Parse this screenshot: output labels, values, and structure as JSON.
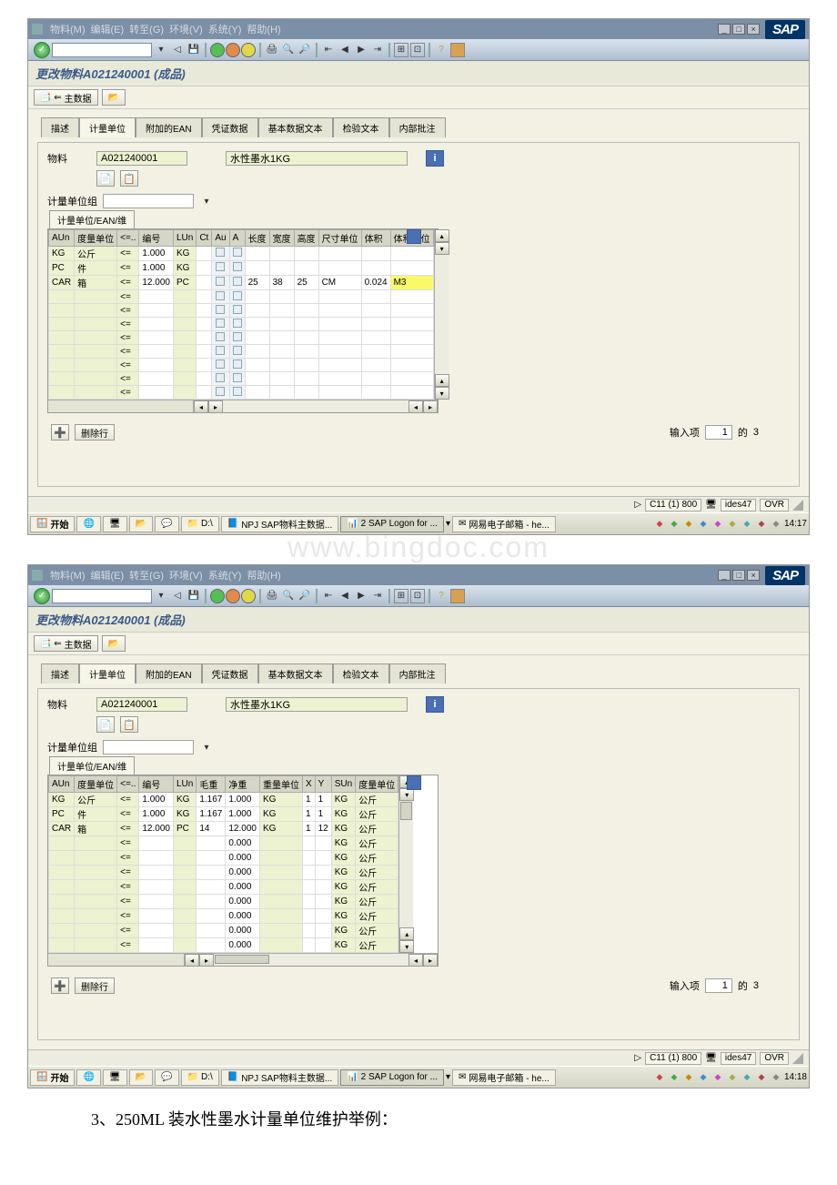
{
  "menubar": {
    "items": [
      "物料(M)",
      "编辑(E)",
      "转至(G)",
      "环境(V)",
      "系统(Y)",
      "帮助(H)"
    ]
  },
  "page_title": "更改物料A021240001 (成品)",
  "toolbar2": {
    "main_data": "主数据"
  },
  "tabs": {
    "t1": "描述",
    "t2": "计量单位",
    "t3": "附加的EAN",
    "t4": "凭证数据",
    "t5": "基本数据文本",
    "t6": "检验文本",
    "t7": "内部批注"
  },
  "header": {
    "material_lbl": "物料",
    "material_code": "A021240001",
    "material_desc": "水性墨水1KG"
  },
  "uom_group_lbl": "计量单位组",
  "subtab_lbl": "计量单位/EAN/维",
  "win1": {
    "columns": {
      "aun": "AUn",
      "uom": "度量单位",
      "op": "<=..",
      "num": "编号",
      "lun": "LUn",
      "ct": "Ct",
      "au": "Au",
      "a": "A",
      "len": "长度",
      "wid": "宽度",
      "hei": "高度",
      "sunit": "尺寸单位",
      "vol": "体积",
      "vunit": "体积单位"
    },
    "rows": [
      {
        "aun": "KG",
        "uom": "公斤",
        "op": "<=",
        "num": "1.000",
        "lun": "KG"
      },
      {
        "aun": "PC",
        "uom": "件",
        "op": "<=",
        "num": "1.000",
        "lun": "KG"
      },
      {
        "aun": "CAR",
        "uom": "箱",
        "op": "<=",
        "num": "12.000",
        "lun": "PC",
        "len": "25",
        "wid": "38",
        "hei": "25",
        "sunit": "CM",
        "vol": "0.024",
        "vunit": "M3",
        "hl": true
      }
    ],
    "empty_rows": 8
  },
  "win2": {
    "columns": {
      "aun": "AUn",
      "uom": "度量单位",
      "op": "<=..",
      "num": "编号",
      "lun": "LUn",
      "gw": "毛重",
      "nw": "净重",
      "wunit": "重量单位",
      "x": "X",
      "y": "Y",
      "sun": "SUn",
      "uom2": "度量单位"
    },
    "rows": [
      {
        "aun": "KG",
        "uom": "公斤",
        "op": "<=",
        "num": "1.000",
        "lun": "KG",
        "gw": "1.167",
        "nw": "1.000",
        "wunit": "KG",
        "x": "1",
        "y": "1",
        "sun": "KG",
        "uom2": "公斤"
      },
      {
        "aun": "PC",
        "uom": "件",
        "op": "<=",
        "num": "1.000",
        "lun": "KG",
        "gw": "1.167",
        "nw": "1.000",
        "wunit": "KG",
        "x": "1",
        "y": "1",
        "sun": "KG",
        "uom2": "公斤"
      },
      {
        "aun": "CAR",
        "uom": "箱",
        "op": "<=",
        "num": "12.000",
        "lun": "PC",
        "gw": "14",
        "nw": "12.000",
        "wunit": "KG",
        "x": "1",
        "y": "12",
        "sun": "KG",
        "uom2": "公斤"
      }
    ],
    "empty_rows": 8,
    "empty_nw": "0.000",
    "empty_sun": "KG",
    "empty_uom2": "公斤"
  },
  "footer": {
    "delete_row": "删除行",
    "entry_lbl": "输入项",
    "entry_cur": "1",
    "entry_of": "的",
    "entry_total": "3"
  },
  "status": {
    "client": "C11 (1) 800",
    "user": "ides47",
    "ovr": "OVR"
  },
  "taskbar": {
    "start": "开始",
    "drive": "D:\\",
    "word": "NPJ SAP物料主数据...",
    "sap": "2 SAP Logon for ...",
    "mail": "网易电子邮箱 - he...",
    "time1": "14:17",
    "time2": "14:18"
  },
  "caption": "3、250ML 装水性墨水计量单位维护举例：",
  "watermark": "www.bingdoc.com"
}
